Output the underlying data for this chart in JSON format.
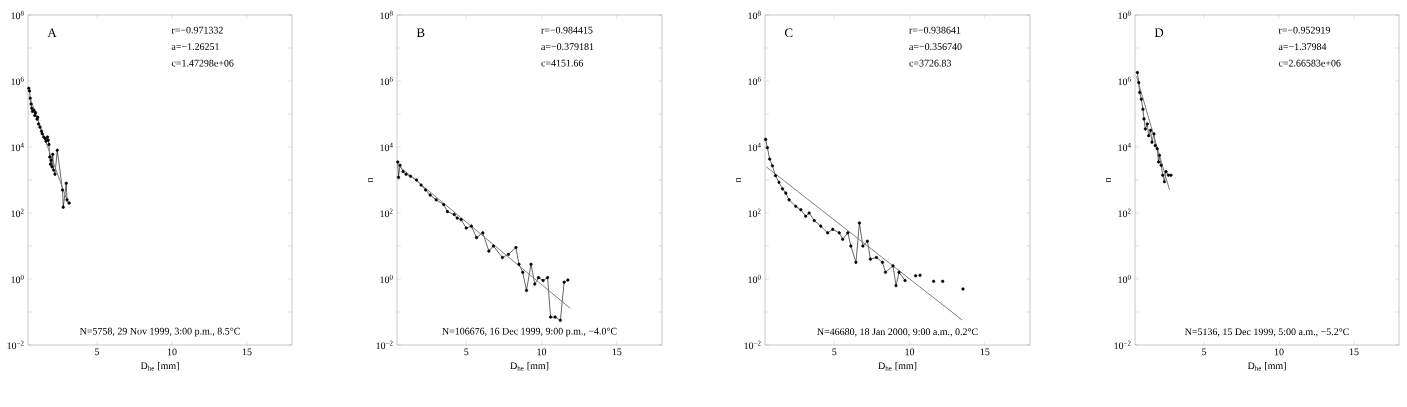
{
  "chart_data": [
    {
      "type": "line",
      "log": true,
      "marker": "circle",
      "line_style": "solid",
      "xlim": [
        0.4,
        18
      ],
      "ylim": [
        0.01,
        100000000
      ],
      "xticks": [
        5,
        10,
        15
      ],
      "yticks": [
        {
          "value": 0.01,
          "label": "10$^{−2}$"
        },
        {
          "value": 0.1,
          "label": null
        },
        {
          "value": 1,
          "label": "10$^{0}$"
        },
        {
          "value": 10,
          "label": null
        },
        {
          "value": 100,
          "label": "10$^{2}$"
        },
        {
          "value": 1000,
          "label": null
        },
        {
          "value": 10000,
          "label": "10$^{4}$"
        },
        {
          "value": 100000,
          "label": null
        },
        {
          "value": 1000000,
          "label": "10$^{6}$"
        },
        {
          "value": 10000000,
          "label": null
        },
        {
          "value": 100000000,
          "label": "10$^{8}$"
        }
      ],
      "xlabel": "D$_{he}$ [mm]",
      "annotations": [
        "A",
        "r=−0.971332",
        "a=−1.26251",
        "c=1.47298e+06",
        "N=5758, 29 Nov 1999, 3:00 p.m., 8.5°C"
      ],
      "series": [
        {
          "color": "#000000",
          "x": [
            0.45,
            0.5,
            0.55,
            0.6,
            0.65,
            0.7,
            0.8,
            0.85,
            0.9,
            1.0,
            1.05,
            1.1,
            1.2,
            1.3,
            1.35,
            1.45,
            1.55,
            1.6,
            1.7,
            1.75,
            1.8,
            1.85,
            1.9,
            1.95,
            2.0,
            2.05,
            2.1,
            2.2,
            2.35,
            2.7,
            2.75,
            2.95,
            3.0,
            3.15
          ],
          "values": [
            600000,
            500000,
            300000,
            200000,
            150000,
            120000,
            130000,
            90000,
            110000,
            70000,
            80000,
            50000,
            40000,
            30000,
            25000,
            20000,
            18000,
            15000,
            20000,
            16000,
            12000,
            5000,
            3000,
            4000,
            2500,
            6000,
            2000,
            1500,
            8000,
            500,
            150,
            800,
            250,
            200
          ]
        },
        {
          "color": "#808080",
          "marker": "none",
          "x": [
            0.5,
            3.1
          ],
          "values": [
            340000,
            180
          ]
        }
      ]
    },
    {
      "type": "line",
      "log": true,
      "marker": "circle",
      "line_style": "solid",
      "xlim": [
        0.4,
        18
      ],
      "ylim": [
        0.01,
        100000000
      ],
      "xticks": [
        5,
        10,
        15
      ],
      "yticks": [
        {
          "value": 0.01,
          "label": "10$^{−2}$"
        },
        {
          "value": 0.1,
          "label": null
        },
        {
          "value": 1,
          "label": "10$^{0}$"
        },
        {
          "value": 10,
          "label": null
        },
        {
          "value": 100,
          "label": "10$^{2}$"
        },
        {
          "value": 1000,
          "label": null
        },
        {
          "value": 10000,
          "label": "10$^{4}$"
        },
        {
          "value": 100000,
          "label": null
        },
        {
          "value": 1000000,
          "label": "10$^{6}$"
        },
        {
          "value": 10000000,
          "label": null
        },
        {
          "value": 100000000,
          "label": "10$^{8}$"
        }
      ],
      "xlabel": "D$_{he}$ [mm]",
      "ylabel": "n",
      "annotations": [
        "B",
        "r=−0.984415",
        "a=−0.379181",
        "c=4151.66",
        "N=106676, 16 Dec 1999, 9:00 p.m., −4.0°C"
      ],
      "series": [
        {
          "color": "#000000",
          "x": [
            0.45,
            0.5,
            0.6,
            0.8,
            1.0,
            1.3,
            1.7,
            2.0,
            2.3,
            2.6,
            3.0,
            3.5,
            3.75,
            4.2,
            4.4,
            4.66,
            5.0,
            5.34,
            5.68,
            6.1,
            6.5,
            6.8,
            7.4,
            7.8,
            8.3,
            8.5,
            8.75,
            9.0,
            9.3,
            9.55,
            9.8,
            10.1,
            10.4,
            10.6,
            10.9,
            11.25,
            11.5,
            11.75
          ],
          "values": [
            3500,
            1200,
            2800,
            1800,
            1500,
            1300,
            1000,
            700,
            500,
            350,
            250,
            180,
            110,
            90,
            70,
            63,
            35,
            40,
            18,
            25,
            7,
            10,
            4.5,
            5.6,
            9,
            2.8,
            1.6,
            0.45,
            2.8,
            0.7,
            1.1,
            0.9,
            1.1,
            0.07,
            0.07,
            0.056,
            0.8,
            0.93
          ]
        },
        {
          "color": "#808080",
          "marker": "none",
          "x": [
            0.5,
            11.9
          ],
          "values": [
            2680,
            0.13
          ]
        }
      ]
    },
    {
      "type": "line",
      "log": true,
      "marker": "circle",
      "line_style": "solid",
      "xlim": [
        0.4,
        18
      ],
      "ylim": [
        0.01,
        100000000
      ],
      "xticks": [
        5,
        10,
        15
      ],
      "yticks": [
        {
          "value": 0.01,
          "label": "10$^{−2}$"
        },
        {
          "value": 0.1,
          "label": null
        },
        {
          "value": 1,
          "label": "10$^{0}$"
        },
        {
          "value": 10,
          "label": null
        },
        {
          "value": 100,
          "label": "10$^{2}$"
        },
        {
          "value": 1000,
          "label": null
        },
        {
          "value": 10000,
          "label": "10$^{4}$"
        },
        {
          "value": 100000,
          "label": null
        },
        {
          "value": 1000000,
          "label": "10$^{6}$"
        },
        {
          "value": 10000000,
          "label": null
        },
        {
          "value": 100000000,
          "label": "10$^{8}$"
        }
      ],
      "xlabel": "D$_{he}$ [mm]",
      "ylabel": "n",
      "annotations": [
        "C",
        "r=−0.938641",
        "a=−0.356740",
        "c=3726.83",
        "N=46680, 18 Jan 2000, 9:00 a.m., 0.2°C"
      ],
      "series": [
        {
          "color": "#000000",
          "x": [
            0.44,
            0.56,
            0.71,
            0.89,
            1.1,
            1.33,
            1.56,
            1.78,
            2.0,
            2.44,
            2.78,
            3.1,
            3.33,
            3.67,
            4.1,
            4.56,
            4.9,
            5.33,
            5.56,
            5.9,
            6.1,
            6.44,
            6.67,
            6.9,
            7.2,
            7.4,
            7.8,
            8.2,
            8.4,
            8.9,
            9.1,
            9.3,
            9.7
          ],
          "values": [
            17000,
            9500,
            4300,
            2700,
            1350,
            850,
            540,
            400,
            250,
            160,
            125,
            80,
            100,
            59,
            40,
            25,
            32,
            25,
            16,
            25,
            10,
            3.2,
            50,
            10,
            14,
            4,
            4.5,
            3.2,
            1.6,
            2.5,
            0.63,
            1.6,
            0.9
          ]
        },
        {
          "type": "scatter",
          "color": "#000000",
          "x": [
            10.4,
            10.7,
            11.6,
            12.2,
            13.55
          ],
          "values": [
            1.26,
            1.3,
            0.85,
            0.85,
            0.5
          ]
        },
        {
          "color": "#808080",
          "marker": "none",
          "x": [
            0.5,
            13.5
          ],
          "values": [
            2470,
            0.057
          ]
        }
      ]
    },
    {
      "type": "line",
      "log": true,
      "marker": "circle",
      "line_style": "solid",
      "xlim": [
        0.4,
        18
      ],
      "ylim": [
        0.01,
        100000000
      ],
      "xticks": [
        5,
        10,
        15
      ],
      "yticks": [
        {
          "value": 0.01,
          "label": "10$^{−2}$"
        },
        {
          "value": 0.1,
          "label": null
        },
        {
          "value": 1,
          "label": "10$^{0}$"
        },
        {
          "value": 10,
          "label": null
        },
        {
          "value": 100,
          "label": "10$^{2}$"
        },
        {
          "value": 1000,
          "label": null
        },
        {
          "value": 10000,
          "label": "10$^{4}$"
        },
        {
          "value": 100000,
          "label": null
        },
        {
          "value": 1000000,
          "label": "10$^{6}$"
        },
        {
          "value": 10000000,
          "label": null
        },
        {
          "value": 100000000,
          "label": "10$^{8}$"
        }
      ],
      "xlabel": "D$_{he}$ [mm]",
      "ylabel": "n",
      "annotations": [
        "D",
        "r=−0.952919",
        "a=−1.37984",
        "c=2.66583e+06",
        "N=5136, 15 Dec 1999, 5:00 a.m., −5.2°C"
      ],
      "series": [
        {
          "color": "#000000",
          "x": [
            0.56,
            0.65,
            0.71,
            0.82,
            0.93,
            1.0,
            1.09,
            1.22,
            1.31,
            1.44,
            1.53,
            1.66,
            1.75,
            1.88,
            1.97,
            2.03,
            2.14,
            2.25,
            2.36,
            2.47,
            2.63,
            2.8
          ],
          "values": [
            1800000,
            890000,
            450000,
            280000,
            140000,
            71000,
            35000,
            50000,
            22000,
            32000,
            14000,
            25000,
            11000,
            8900,
            3500,
            5600,
            2800,
            1400,
            890,
            1800,
            1400,
            1400
          ]
        },
        {
          "color": "#808080",
          "marker": "none",
          "x": [
            0.5,
            2.7
          ],
          "values": [
            1400000,
            500
          ]
        }
      ]
    }
  ]
}
